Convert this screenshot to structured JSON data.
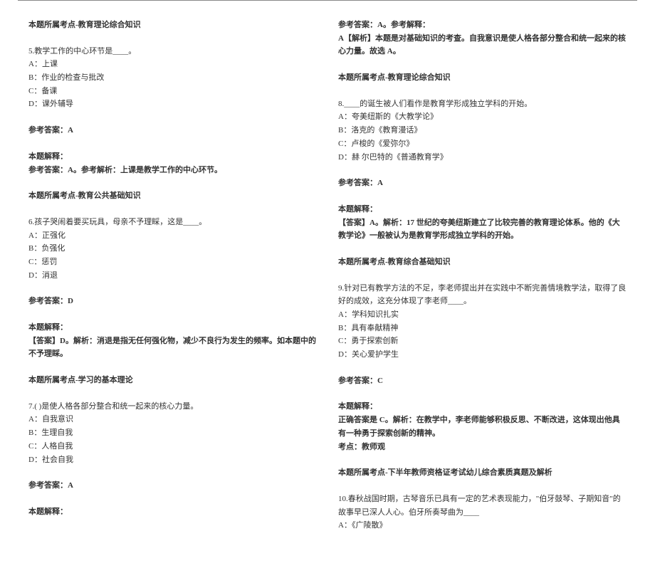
{
  "left": {
    "topic4": "本题所属考点-教育理论综合知识",
    "q5": {
      "stem": "5.教学工作的中心环节是____。",
      "A": "A：上课",
      "B": "B：作业的检查与批改",
      "C": "C：备课",
      "D": "D：课外辅导",
      "ans_label": "参考答案：A",
      "exp_label": "本题解释：",
      "exp": "参考答案：A。参考解析：上课是教学工作的中心环节。",
      "topic": "本题所属考点-教育公共基础知识"
    },
    "q6": {
      "stem": "6.孩子哭闹着要买玩具，母亲不予理睬，这是____。",
      "A": "A：正强化",
      "B": "B：负强化",
      "C": "C：惩罚",
      "D": "D：消退",
      "ans_label": "参考答案：D",
      "exp_label": "本题解释：",
      "exp": "【答案】D。解析：消退是指无任何强化物，减少不良行为发生的频率。如本题中的不予理睬。",
      "topic": "本题所属考点-学习的基本理论"
    },
    "q7": {
      "stem": "7.( )是使人格各部分整合和统一起来的核心力量。",
      "A": "A：自我意识",
      "B": "B：生理自我",
      "C": "C：人格自我",
      "D": "D：社会自我",
      "ans_label": "参考答案：A",
      "exp_label": "本题解释："
    }
  },
  "right": {
    "q7cont": {
      "label": "参考答案：A。参考解释：",
      "exp": "A【解析】本题是对基础知识的考查。自我意识是使人格各部分整合和统一起来的核心力量。故选 A。",
      "topic": "本题所属考点-教育理论综合知识"
    },
    "q8": {
      "stem": "8.____的诞生被人们看作是教育学形成独立学科的开始。",
      "A": "A：夸美纽斯的《大教学论》",
      "B": "B：洛克的《教育漫话》",
      "C": "C：卢梭的《爱弥尔》",
      "D": "D：赫 尔巴特的《普通教育学》",
      "ans_label": "参考答案：A",
      "exp_label": "本题解释：",
      "exp": "【答案】A。解析：17 世纪的夸美纽斯建立了比较完善的教育理论体系。他的《大教学论》一般被认为是教育学形成独立学科的开始。",
      "topic": "本题所属考点-教育综合基础知识"
    },
    "q9": {
      "stem1": "9.针对已有教学方法的不足，李老师提出并在实践中不断完善情境教学法，取得了良好的成效，这充分体现了李老师____。",
      "A": "A：学科知识扎实",
      "B": "B：具有奉献精神",
      "C": "C：勇于探索创新",
      "D": "D：关心爱护学生",
      "ans_label": "参考答案：C",
      "exp_label": "本题解释：",
      "exp": "正确答案是 C。解析：在教学中，李老师能够积极反思、不断改进，这体现出他具有一种勇于探索创新的精神。",
      "point": "考点：教师观",
      "topic": "本题所属考点-下半年教师资格证考试幼儿综合素质真题及解析"
    },
    "q10": {
      "stem": "10.春秋战国时期，古琴音乐已具有一定的艺术表现能力，\"伯牙鼓琴、子期知音\"的故事早已深人人心。伯牙所奏琴曲为____",
      "A": "A：《广陵散》"
    }
  }
}
